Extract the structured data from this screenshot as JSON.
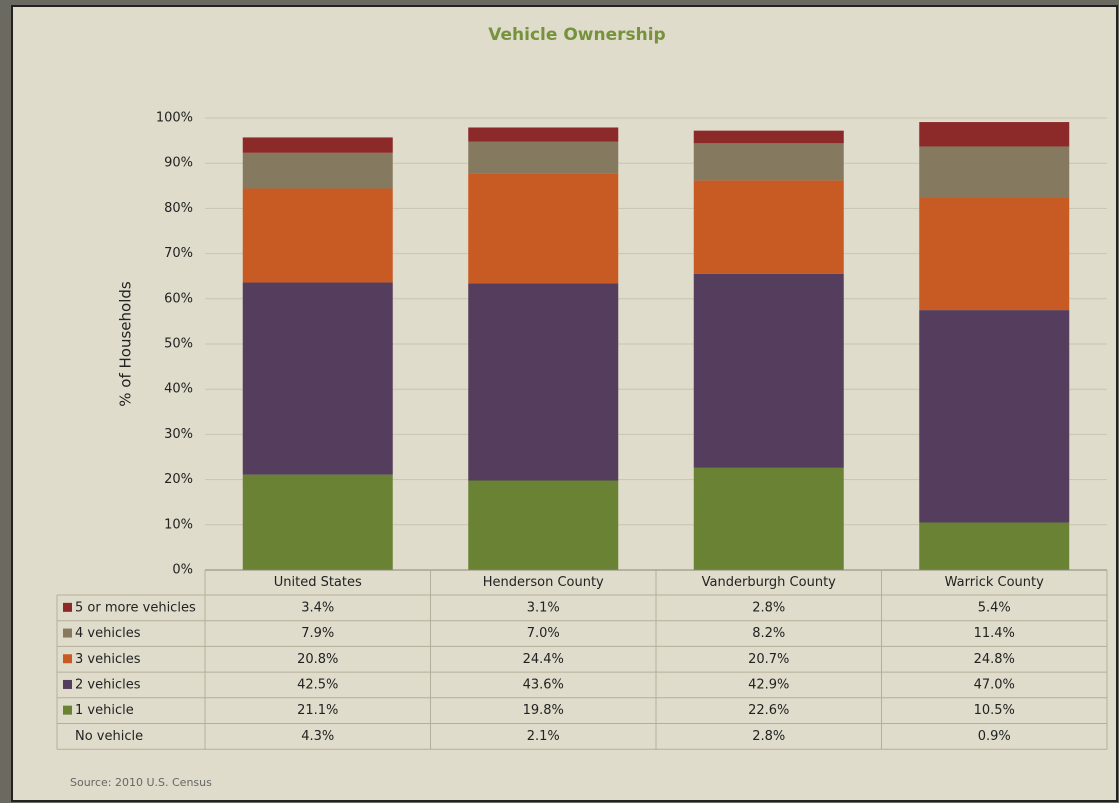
{
  "chart_data": {
    "type": "stacked_bar",
    "title": "Vehicle Ownership",
    "ylabel": "% of Households",
    "categories": [
      "United States",
      "Henderson County",
      "Vanderburgh County",
      "Warrick County"
    ],
    "ylim": [
      0,
      100
    ],
    "yticks": [
      {
        "value": 0,
        "label": "0%"
      },
      {
        "value": 10,
        "label": "10%"
      },
      {
        "value": 20,
        "label": "20%"
      },
      {
        "value": 30,
        "label": "30%"
      },
      {
        "value": 40,
        "label": "40%"
      },
      {
        "value": 50,
        "label": "50%"
      },
      {
        "value": 60,
        "label": "60%"
      },
      {
        "value": 70,
        "label": "70%"
      },
      {
        "value": 80,
        "label": "80%"
      },
      {
        "value": 90,
        "label": "90%"
      },
      {
        "value": 100,
        "label": "100%"
      }
    ],
    "grid": true,
    "series": [
      {
        "name": "5 or more vehicles",
        "color": "#8b2a28",
        "values": [
          3.4,
          3.1,
          2.8,
          5.4
        ],
        "value_labels": [
          "3.4%",
          "3.1%",
          "2.8%",
          "5.4%"
        ]
      },
      {
        "name": "4 vehicles",
        "color": "#857a60",
        "values": [
          7.9,
          7.0,
          8.2,
          11.4
        ],
        "value_labels": [
          "7.9%",
          "7.0%",
          "8.2%",
          "11.4%"
        ]
      },
      {
        "name": "3 vehicles",
        "color": "#c85a23",
        "values": [
          20.8,
          24.4,
          20.7,
          24.8
        ],
        "value_labels": [
          "20.8%",
          "24.4%",
          "20.7%",
          "24.8%"
        ]
      },
      {
        "name": "2 vehicles",
        "color": "#553d5e",
        "values": [
          42.5,
          43.6,
          42.9,
          47.0
        ],
        "value_labels": [
          "42.5%",
          "43.6%",
          "42.9%",
          "47.0%"
        ]
      },
      {
        "name": "1 vehicle",
        "color": "#6a8234",
        "values": [
          21.1,
          19.8,
          22.6,
          10.5
        ],
        "value_labels": [
          "21.1%",
          "19.8%",
          "22.6%",
          "10.5%"
        ]
      },
      {
        "name": "No vehicle",
        "values": [
          4.3,
          2.1,
          2.8,
          0.9
        ],
        "value_labels": [
          "4.3%",
          "2.1%",
          "2.8%",
          "0.9%"
        ]
      }
    ],
    "source": "Source: 2010 U.S. Census"
  }
}
